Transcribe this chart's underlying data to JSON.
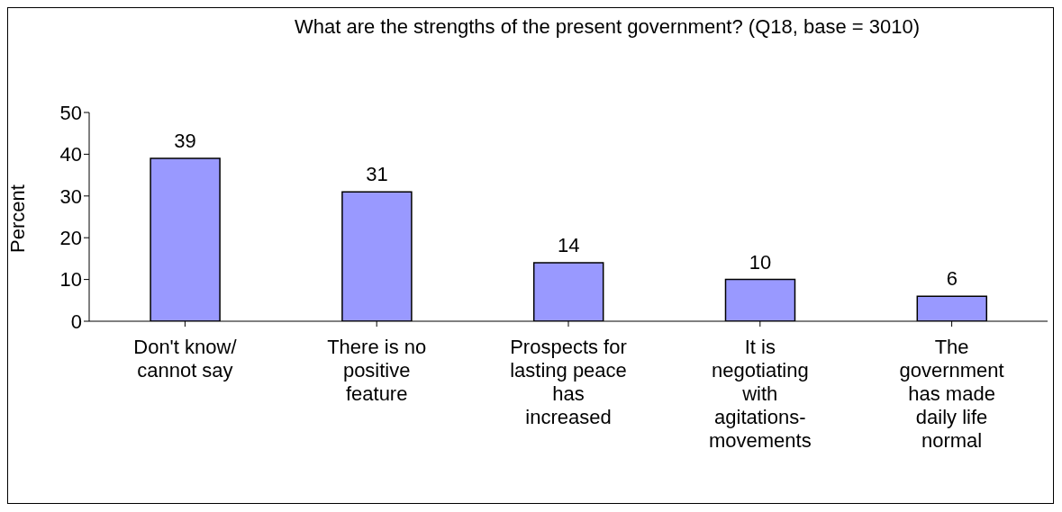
{
  "chart_data": {
    "type": "bar",
    "title": "What are the strengths of the present government? (Q18, base = 3010)",
    "ylabel": "Percent",
    "categories": [
      "Don't know/\ncannot say",
      "There is no\npositive\nfeature",
      "Prospects for\nlasting peace\nhas\nincreased",
      "It is\nnegotiating\nwith\nagitations-\nmovements",
      "The\ngovernment\nhas made\ndaily life\nnormal"
    ],
    "values": [
      39,
      31,
      14,
      10,
      6
    ],
    "color": "#9999ff",
    "ylim": [
      0,
      50
    ],
    "yticks": [
      0,
      10,
      20,
      30,
      40,
      50
    ],
    "grid": false,
    "legend": false,
    "data_labels": true
  }
}
